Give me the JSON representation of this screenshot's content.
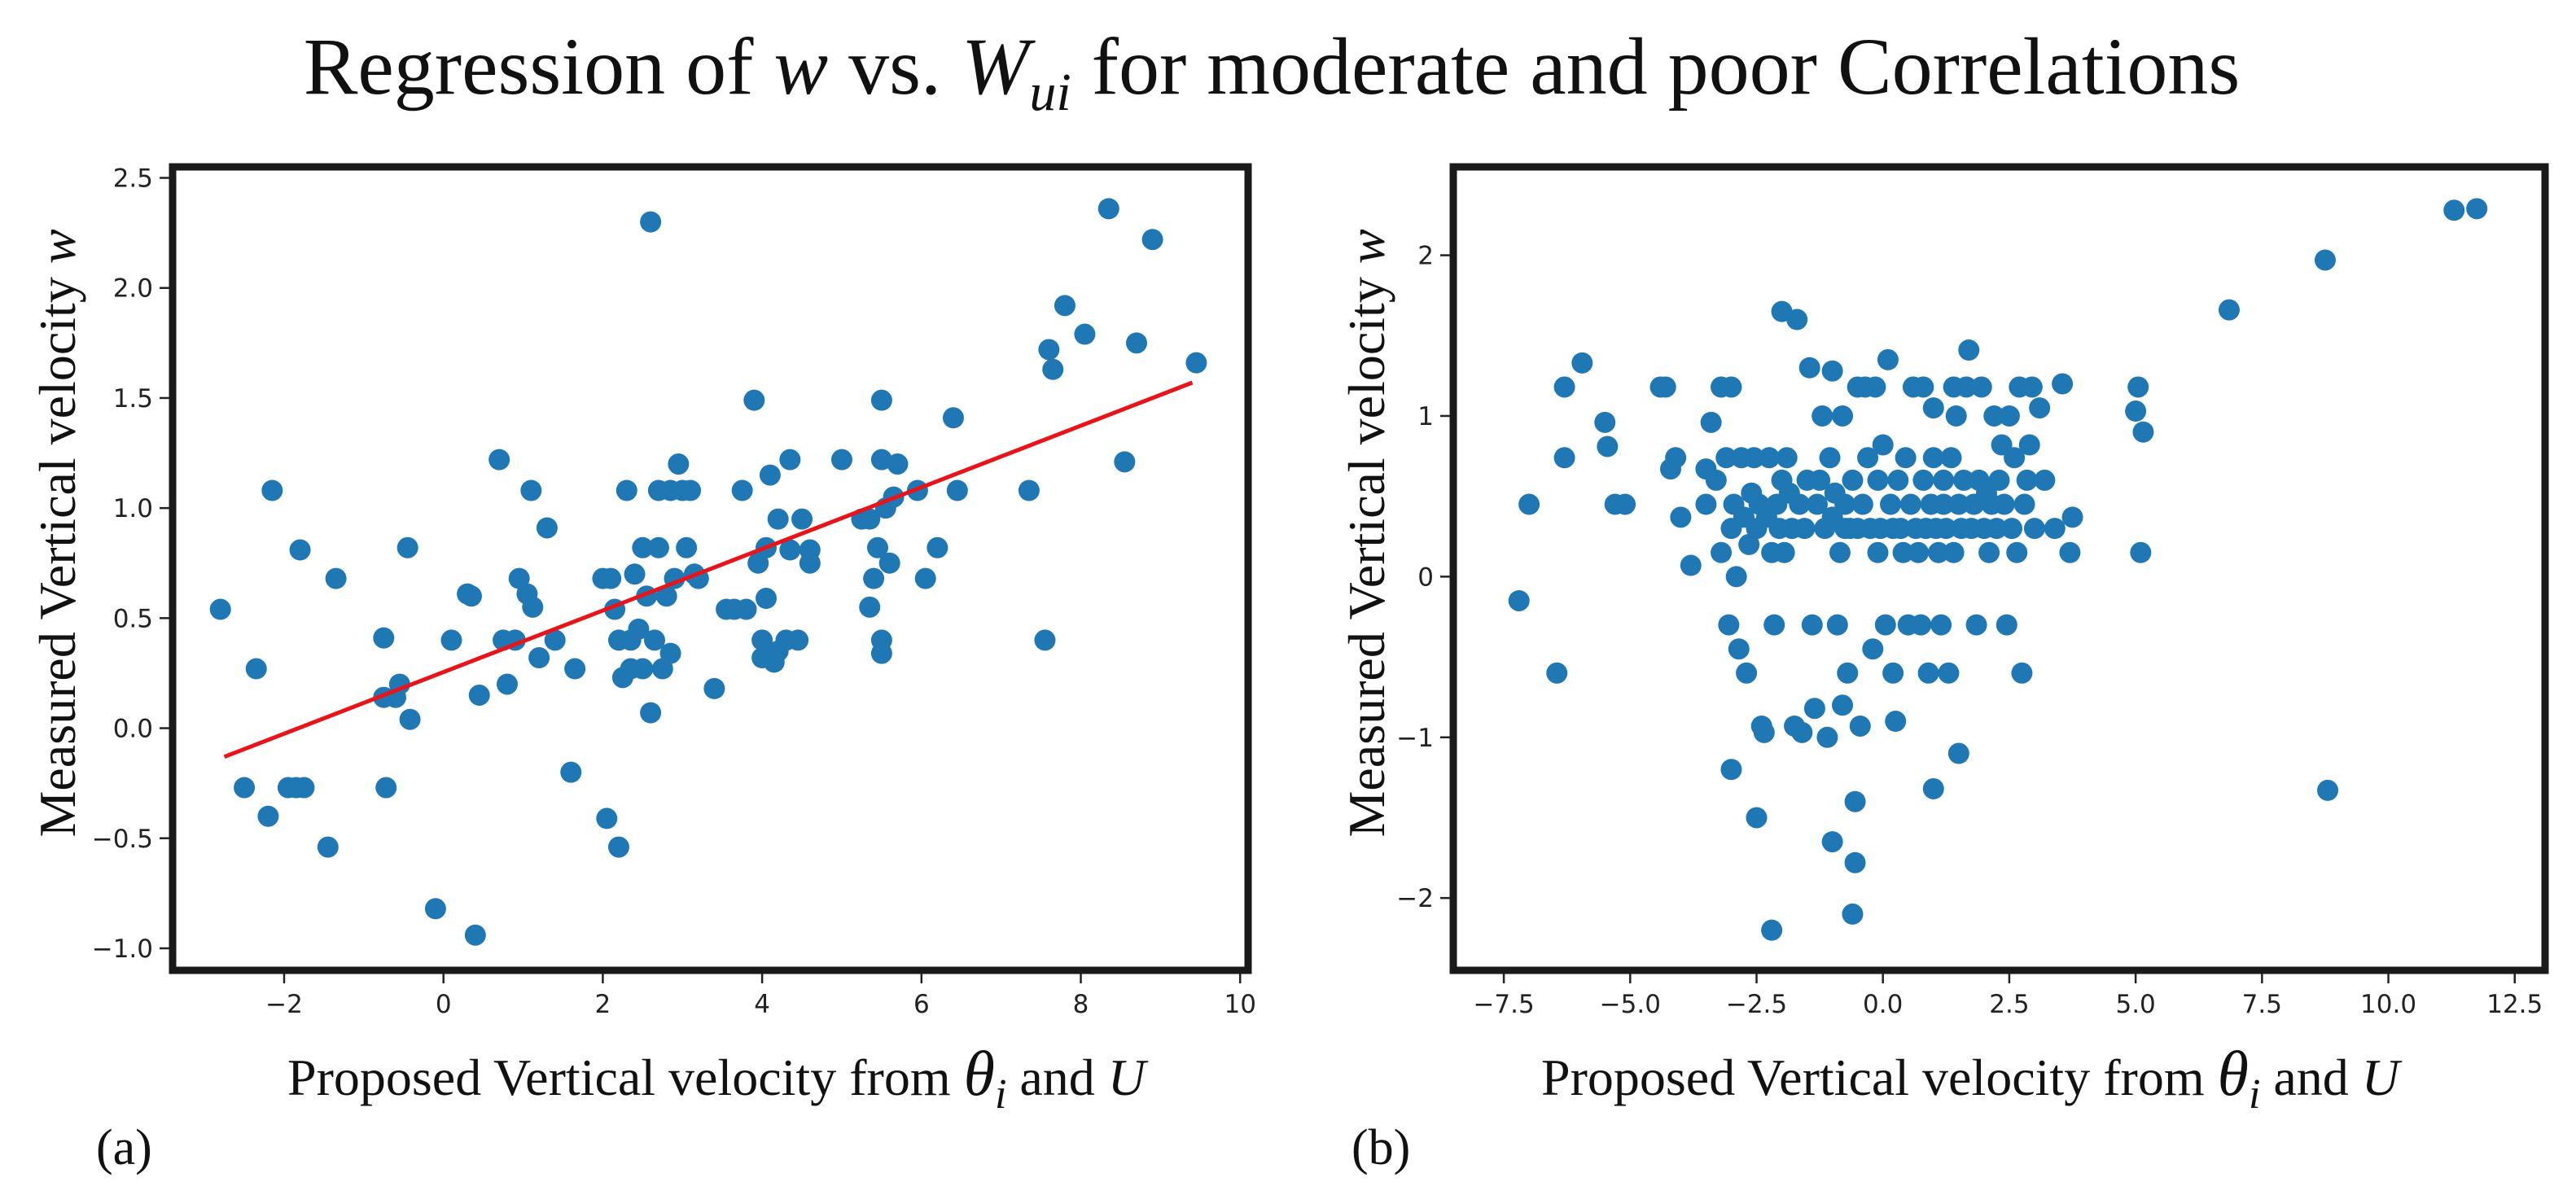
{
  "title": {
    "prefix": "Regression of ",
    "var1": "w",
    "mid": " vs. ",
    "var2": "W",
    "var2_sub": "ui",
    "suffix": " for moderate and poor Correlations"
  },
  "chart_data": [
    {
      "type": "scatter",
      "panel_label": "(a)",
      "xlabel": {
        "text": "Proposed Vertical velocity from ",
        "symbol": "θ",
        "symbol_sub": "i",
        "tail": " and ",
        "var": "U"
      },
      "ylabel": {
        "text": "Measured Vertical velocity ",
        "var": "w"
      },
      "xlim": [
        -3.4,
        10.1
      ],
      "ylim": [
        -1.1,
        2.55
      ],
      "xticks": [
        -2,
        0,
        2,
        4,
        6,
        8,
        10
      ],
      "xtick_labels": [
        "−2",
        "0",
        "2",
        "4",
        "6",
        "8",
        "10"
      ],
      "yticks": [
        -1.0,
        -0.5,
        0.0,
        0.5,
        1.0,
        1.5,
        2.0,
        2.5
      ],
      "ytick_labels": [
        "−1.0",
        "−0.5",
        "0.0",
        "0.5",
        "1.0",
        "1.5",
        "2.0",
        "2.5"
      ],
      "marker_color": "#1f77b4",
      "fit_line": {
        "color": "#e8141a",
        "x": [
          -2.75,
          9.4
        ],
        "y": [
          -0.13,
          1.57
        ]
      },
      "points": [
        [
          -2.8,
          0.54
        ],
        [
          -2.5,
          -0.27
        ],
        [
          -2.35,
          0.27
        ],
        [
          -2.2,
          -0.4
        ],
        [
          -2.15,
          1.08
        ],
        [
          -1.95,
          -0.27
        ],
        [
          -1.85,
          -0.27
        ],
        [
          -1.8,
          0.81
        ],
        [
          -1.75,
          -0.27
        ],
        [
          -1.45,
          -0.54
        ],
        [
          -1.35,
          0.68
        ],
        [
          -0.75,
          0.41
        ],
        [
          -0.75,
          0.14
        ],
        [
          -0.72,
          -0.27
        ],
        [
          -0.6,
          0.14
        ],
        [
          -0.55,
          0.2
        ],
        [
          -0.45,
          0.82
        ],
        [
          -0.42,
          0.04
        ],
        [
          -0.1,
          -0.82
        ],
        [
          0.1,
          0.4
        ],
        [
          0.3,
          0.61
        ],
        [
          0.35,
          0.6
        ],
        [
          0.4,
          -0.94
        ],
        [
          0.45,
          0.15
        ],
        [
          0.7,
          1.22
        ],
        [
          0.75,
          0.4
        ],
        [
          0.8,
          0.2
        ],
        [
          0.9,
          0.4
        ],
        [
          0.95,
          0.68
        ],
        [
          1.05,
          0.61
        ],
        [
          1.1,
          1.08
        ],
        [
          1.12,
          0.55
        ],
        [
          1.2,
          0.32
        ],
        [
          1.3,
          0.91
        ],
        [
          1.4,
          0.4
        ],
        [
          1.6,
          -0.2
        ],
        [
          1.65,
          0.27
        ],
        [
          2.0,
          0.68
        ],
        [
          2.05,
          -0.41
        ],
        [
          2.1,
          0.68
        ],
        [
          2.15,
          0.54
        ],
        [
          2.2,
          -0.54
        ],
        [
          2.2,
          0.4
        ],
        [
          2.25,
          0.23
        ],
        [
          2.3,
          1.08
        ],
        [
          2.35,
          0.4
        ],
        [
          2.35,
          0.27
        ],
        [
          2.4,
          0.7
        ],
        [
          2.45,
          0.45
        ],
        [
          2.5,
          0.82
        ],
        [
          2.5,
          0.27
        ],
        [
          2.55,
          0.6
        ],
        [
          2.6,
          0.07
        ],
        [
          2.65,
          0.4
        ],
        [
          2.6,
          2.3
        ],
        [
          2.7,
          0.82
        ],
        [
          2.7,
          1.08
        ],
        [
          2.75,
          0.27
        ],
        [
          2.8,
          0.6
        ],
        [
          2.85,
          0.34
        ],
        [
          2.85,
          1.08
        ],
        [
          2.9,
          0.68
        ],
        [
          2.95,
          1.2
        ],
        [
          3.0,
          1.08
        ],
        [
          3.05,
          0.82
        ],
        [
          3.1,
          1.08
        ],
        [
          3.15,
          0.7
        ],
        [
          3.2,
          0.68
        ],
        [
          3.4,
          0.18
        ],
        [
          3.55,
          0.54
        ],
        [
          3.65,
          0.54
        ],
        [
          3.75,
          1.08
        ],
        [
          3.8,
          0.54
        ],
        [
          3.9,
          1.49
        ],
        [
          3.95,
          0.75
        ],
        [
          4.0,
          0.32
        ],
        [
          4.0,
          0.4
        ],
        [
          4.05,
          0.59
        ],
        [
          4.05,
          0.82
        ],
        [
          4.1,
          1.15
        ],
        [
          4.15,
          0.3
        ],
        [
          4.2,
          0.95
        ],
        [
          4.2,
          0.35
        ],
        [
          4.3,
          0.4
        ],
        [
          4.35,
          1.22
        ],
        [
          4.35,
          0.81
        ],
        [
          4.45,
          0.4
        ],
        [
          4.5,
          0.95
        ],
        [
          4.6,
          0.75
        ],
        [
          4.6,
          0.81
        ],
        [
          5.0,
          1.22
        ],
        [
          5.25,
          0.95
        ],
        [
          5.35,
          0.95
        ],
        [
          5.35,
          0.55
        ],
        [
          5.4,
          0.68
        ],
        [
          5.45,
          0.82
        ],
        [
          5.5,
          0.4
        ],
        [
          5.5,
          0.34
        ],
        [
          5.5,
          1.22
        ],
        [
          5.5,
          1.49
        ],
        [
          5.55,
          1.0
        ],
        [
          5.6,
          0.75
        ],
        [
          5.65,
          1.05
        ],
        [
          5.7,
          1.2
        ],
        [
          5.95,
          1.08
        ],
        [
          6.05,
          0.68
        ],
        [
          6.2,
          0.82
        ],
        [
          6.4,
          1.41
        ],
        [
          6.45,
          1.08
        ],
        [
          7.35,
          1.08
        ],
        [
          7.55,
          0.4
        ],
        [
          7.6,
          1.72
        ],
        [
          7.65,
          1.63
        ],
        [
          7.8,
          1.92
        ],
        [
          8.05,
          1.79
        ],
        [
          8.35,
          2.36
        ],
        [
          8.55,
          1.21
        ],
        [
          8.7,
          1.75
        ],
        [
          8.9,
          2.22
        ],
        [
          9.45,
          1.66
        ]
      ]
    },
    {
      "type": "scatter",
      "panel_label": "(b)",
      "xlabel": {
        "text": "Proposed Vertical velocity from ",
        "symbol": "θ",
        "symbol_sub": "i",
        "tail": " and ",
        "var": "U"
      },
      "ylabel": {
        "text": "Measured Vertical velocity ",
        "var": "w"
      },
      "xlim": [
        -8.5,
        13.1
      ],
      "ylim": [
        -2.45,
        2.55
      ],
      "xticks": [
        -7.5,
        -5.0,
        -2.5,
        0.0,
        2.5,
        5.0,
        7.5,
        10.0,
        12.5
      ],
      "xtick_labels": [
        "−7.5",
        "−5.0",
        "−2.5",
        "0.0",
        "2.5",
        "5.0",
        "7.5",
        "10.0",
        "12.5"
      ],
      "yticks": [
        -2,
        -1,
        0,
        1,
        2
      ],
      "ytick_labels": [
        "−2",
        "−1",
        "0",
        "1",
        "2"
      ],
      "marker_color": "#1f77b4",
      "points": [
        [
          -7.2,
          -0.15
        ],
        [
          -7.0,
          0.45
        ],
        [
          -6.45,
          -0.6
        ],
        [
          -6.3,
          1.18
        ],
        [
          -6.3,
          0.74
        ],
        [
          -5.95,
          1.33
        ],
        [
          -5.5,
          0.96
        ],
        [
          -5.45,
          0.81
        ],
        [
          -5.3,
          0.45
        ],
        [
          -5.1,
          0.45
        ],
        [
          -4.4,
          1.18
        ],
        [
          -4.3,
          1.18
        ],
        [
          -4.2,
          0.67
        ],
        [
          -4.1,
          0.74
        ],
        [
          -4.0,
          0.37
        ],
        [
          -3.8,
          0.07
        ],
        [
          -3.5,
          0.45
        ],
        [
          -3.5,
          0.67
        ],
        [
          -3.4,
          0.96
        ],
        [
          -3.3,
          0.6
        ],
        [
          -3.2,
          1.18
        ],
        [
          -3.2,
          0.15
        ],
        [
          -3.1,
          0.74
        ],
        [
          -3.05,
          -0.3
        ],
        [
          -3.0,
          1.18
        ],
        [
          -3.0,
          0.3
        ],
        [
          -2.95,
          0.45
        ],
        [
          -2.9,
          0.0
        ],
        [
          -2.85,
          -0.45
        ],
        [
          -2.8,
          0.74
        ],
        [
          -2.75,
          0.37
        ],
        [
          -2.7,
          -0.6
        ],
        [
          -2.65,
          0.2
        ],
        [
          -2.6,
          0.52
        ],
        [
          -2.55,
          0.74
        ],
        [
          -2.5,
          0.3
        ],
        [
          -2.45,
          0.45
        ],
        [
          -2.4,
          -0.93
        ],
        [
          -2.35,
          -0.97
        ],
        [
          -2.3,
          0.37
        ],
        [
          -2.25,
          0.74
        ],
        [
          -2.2,
          0.15
        ],
        [
          -2.15,
          -0.3
        ],
        [
          -2.1,
          0.45
        ],
        [
          -2.05,
          0.3
        ],
        [
          -2.0,
          0.6
        ],
        [
          -2.0,
          1.65
        ],
        [
          -1.95,
          0.15
        ],
        [
          -1.9,
          0.74
        ],
        [
          -1.85,
          0.52
        ],
        [
          -1.8,
          0.3
        ],
        [
          -1.75,
          -0.93
        ],
        [
          -1.7,
          1.6
        ],
        [
          -1.65,
          0.45
        ],
        [
          -1.6,
          -0.97
        ],
        [
          -1.55,
          0.3
        ],
        [
          -1.5,
          0.6
        ],
        [
          -1.45,
          1.3
        ],
        [
          -1.4,
          -0.3
        ],
        [
          -1.35,
          -0.82
        ],
        [
          -1.3,
          0.45
        ],
        [
          -1.25,
          0.6
        ],
        [
          -1.2,
          1.0
        ],
        [
          -1.15,
          0.3
        ],
        [
          -1.1,
          -1.0
        ],
        [
          -1.05,
          0.74
        ],
        [
          -1.0,
          1.28
        ],
        [
          -1.0,
          0.37
        ],
        [
          -0.95,
          0.52
        ],
        [
          -0.9,
          -0.3
        ],
        [
          -0.85,
          0.15
        ],
        [
          -0.8,
          1.0
        ],
        [
          -0.75,
          0.45
        ],
        [
          -0.75,
          0.3
        ],
        [
          -0.7,
          -0.6
        ],
        [
          -0.65,
          0.3
        ],
        [
          -0.6,
          0.6
        ],
        [
          -0.55,
          -1.4
        ],
        [
          -0.5,
          1.18
        ],
        [
          -0.5,
          0.3
        ],
        [
          -0.45,
          -0.93
        ],
        [
          -0.4,
          0.45
        ],
        [
          -0.35,
          1.18
        ],
        [
          -0.3,
          0.74
        ],
        [
          -0.25,
          0.3
        ],
        [
          -0.2,
          -0.45
        ],
        [
          -0.15,
          1.18
        ],
        [
          -0.1,
          0.6
        ],
        [
          -0.1,
          0.15
        ],
        [
          -0.05,
          0.3
        ],
        [
          0.0,
          0.82
        ],
        [
          0.05,
          -0.3
        ],
        [
          0.1,
          1.35
        ],
        [
          0.15,
          0.45
        ],
        [
          0.2,
          -0.6
        ],
        [
          0.2,
          0.3
        ],
        [
          0.25,
          -0.9
        ],
        [
          0.3,
          0.6
        ],
        [
          0.35,
          0.3
        ],
        [
          0.4,
          0.15
        ],
        [
          0.45,
          0.74
        ],
        [
          0.5,
          -0.3
        ],
        [
          0.55,
          0.45
        ],
        [
          0.6,
          1.18
        ],
        [
          0.65,
          0.3
        ],
        [
          0.7,
          0.15
        ],
        [
          0.75,
          -0.3
        ],
        [
          0.8,
          0.6
        ],
        [
          0.85,
          0.3
        ],
        [
          0.9,
          -0.6
        ],
        [
          0.95,
          0.45
        ],
        [
          1.0,
          -1.32
        ],
        [
          1.0,
          0.74
        ],
        [
          1.05,
          0.3
        ],
        [
          1.1,
          0.15
        ],
        [
          1.15,
          -0.3
        ],
        [
          1.2,
          0.45
        ],
        [
          1.2,
          0.6
        ],
        [
          1.25,
          0.3
        ],
        [
          1.3,
          -0.6
        ],
        [
          1.35,
          0.74
        ],
        [
          1.4,
          0.15
        ],
        [
          1.45,
          1.0
        ],
        [
          1.5,
          -1.1
        ],
        [
          1.5,
          0.45
        ],
        [
          1.55,
          0.3
        ],
        [
          1.6,
          0.6
        ],
        [
          1.65,
          1.18
        ],
        [
          1.7,
          1.41
        ],
        [
          1.75,
          0.3
        ],
        [
          1.8,
          0.45
        ],
        [
          1.85,
          -0.3
        ],
        [
          1.9,
          0.6
        ],
        [
          1.95,
          1.18
        ],
        [
          2.0,
          0.3
        ],
        [
          2.05,
          0.52
        ],
        [
          2.1,
          0.15
        ],
        [
          2.15,
          0.45
        ],
        [
          2.2,
          1.0
        ],
        [
          2.25,
          0.3
        ],
        [
          2.3,
          0.6
        ],
        [
          2.35,
          0.82
        ],
        [
          2.4,
          0.45
        ],
        [
          2.45,
          -0.3
        ],
        [
          2.5,
          1.0
        ],
        [
          2.55,
          0.3
        ],
        [
          2.6,
          0.74
        ],
        [
          2.65,
          0.15
        ],
        [
          2.7,
          1.18
        ],
        [
          2.75,
          -0.6
        ],
        [
          2.8,
          0.45
        ],
        [
          2.85,
          0.6
        ],
        [
          2.9,
          0.82
        ],
        [
          2.95,
          1.18
        ],
        [
          3.0,
          0.3
        ],
        [
          3.1,
          1.05
        ],
        [
          3.2,
          0.6
        ],
        [
          3.4,
          0.3
        ],
        [
          3.55,
          1.2
        ],
        [
          3.7,
          0.15
        ],
        [
          3.75,
          0.37
        ],
        [
          5.0,
          1.03
        ],
        [
          5.05,
          1.18
        ],
        [
          5.1,
          0.15
        ],
        [
          5.15,
          0.9
        ],
        [
          6.85,
          1.66
        ],
        [
          8.75,
          1.97
        ],
        [
          8.8,
          -1.33
        ],
        [
          11.3,
          2.28
        ],
        [
          11.75,
          2.29
        ],
        [
          -3.0,
          -1.2
        ],
        [
          -2.5,
          -1.5
        ],
        [
          -2.2,
          -2.2
        ],
        [
          -1.0,
          -1.65
        ],
        [
          -0.8,
          -0.8
        ],
        [
          -0.55,
          -1.78
        ],
        [
          -0.6,
          -2.1
        ],
        [
          0.8,
          1.18
        ],
        [
          1.0,
          1.05
        ],
        [
          1.4,
          1.18
        ]
      ]
    }
  ]
}
